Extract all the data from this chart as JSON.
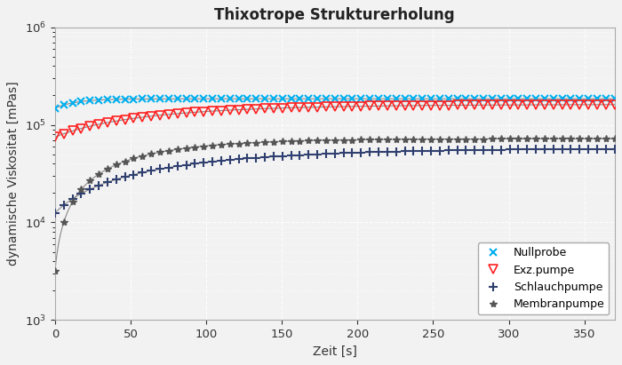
{
  "title": "Thixotrope Strukturerholung",
  "xlabel": "Zeit [s]",
  "ylabel": "dynamische Viskositat [mPas]",
  "xlim": [
    0,
    370
  ],
  "ylim": [
    1000,
    1000000
  ],
  "background_color": "#f2f2f2",
  "plot_bg_color": "#f2f2f2",
  "grid_color": "#ffffff",
  "series": {
    "nullprobe": {
      "label": "Nullprobe",
      "color": "#00b0f0",
      "marker": "x",
      "markersize": 6,
      "markeredgewidth": 1.5,
      "linecolor": "#888888",
      "linewidth": 0.8,
      "y0": 148000,
      "y_asymptote": 185000,
      "tau": 15
    },
    "exzpumpe": {
      "label": "Exz.pumpe",
      "color": "#ff2020",
      "marker": "v",
      "markersize": 7,
      "markeredgewidth": 1.2,
      "linecolor": "#888888",
      "linewidth": 0.8,
      "y0": 75000,
      "y_asymptote": 162000,
      "tau": 80
    },
    "schlauchpumpe": {
      "label": "Schlauchpumpe",
      "color": "#2f3f6f",
      "marker": "+",
      "markersize": 7,
      "markeredgewidth": 1.5,
      "linecolor": "#888888",
      "linewidth": 0.8,
      "y0": 12500,
      "y_asymptote": 58000,
      "tau": 100
    },
    "membranpumpe": {
      "label": "Membranpumpe",
      "color": "#555555",
      "marker": "*",
      "markersize": 6,
      "markeredgewidth": 1.0,
      "linecolor": "#888888",
      "linewidth": 0.8,
      "y0": 3200,
      "y_asymptote": 72000,
      "tau": 55
    }
  },
  "n_markers": 65,
  "n_line": 500,
  "legend_loc": "lower right",
  "title_fontsize": 12,
  "label_fontsize": 10,
  "tick_fontsize": 9.5
}
